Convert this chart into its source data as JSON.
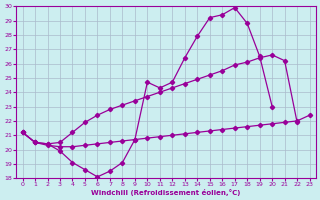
{
  "xlabel": "Windchill (Refroidissement éolien,°C)",
  "bg_color": "#cceef0",
  "grid_color": "#aabbcc",
  "line_color": "#990099",
  "ylim": [
    18,
    30
  ],
  "xlim": [
    -0.5,
    23.5
  ],
  "yticks": [
    18,
    19,
    20,
    21,
    22,
    23,
    24,
    25,
    26,
    27,
    28,
    29,
    30
  ],
  "xticks": [
    0,
    1,
    2,
    3,
    4,
    5,
    6,
    7,
    8,
    9,
    10,
    11,
    12,
    13,
    14,
    15,
    16,
    17,
    18,
    19,
    20,
    21,
    22,
    23
  ],
  "curve1_x": [
    0,
    1,
    2,
    3,
    4,
    5,
    6,
    7,
    8,
    9,
    10,
    11,
    12,
    13,
    14,
    15,
    16,
    17,
    18,
    19,
    20
  ],
  "curve1_y": [
    21.2,
    20.5,
    20.4,
    19.9,
    19.1,
    18.6,
    18.1,
    18.5,
    19.1,
    20.7,
    24.7,
    24.3,
    24.7,
    26.4,
    27.9,
    29.2,
    29.4,
    29.9,
    28.8,
    26.5,
    23.0
  ],
  "curve2_x": [
    0,
    1,
    2,
    3,
    4,
    5,
    6,
    7,
    8,
    9,
    10,
    11,
    12,
    13,
    14,
    15,
    16,
    17,
    18,
    19,
    20,
    21,
    22
  ],
  "curve2_y": [
    21.2,
    20.5,
    20.4,
    20.5,
    21.2,
    21.9,
    22.4,
    22.8,
    23.1,
    23.4,
    23.7,
    24.0,
    24.3,
    24.6,
    24.9,
    25.2,
    25.5,
    25.9,
    26.1,
    26.4,
    26.6,
    26.2,
    21.9
  ],
  "curve3_x": [
    0,
    1,
    2,
    3,
    4,
    5,
    6,
    7,
    8,
    9,
    10,
    11,
    12,
    13,
    14,
    15,
    16,
    17,
    18,
    19,
    20,
    21,
    22,
    23
  ],
  "curve3_y": [
    21.2,
    20.5,
    20.3,
    20.2,
    20.2,
    20.3,
    20.4,
    20.5,
    20.6,
    20.7,
    20.8,
    20.9,
    21.0,
    21.1,
    21.2,
    21.3,
    21.4,
    21.5,
    21.6,
    21.7,
    21.8,
    21.9,
    22.0,
    22.4
  ]
}
